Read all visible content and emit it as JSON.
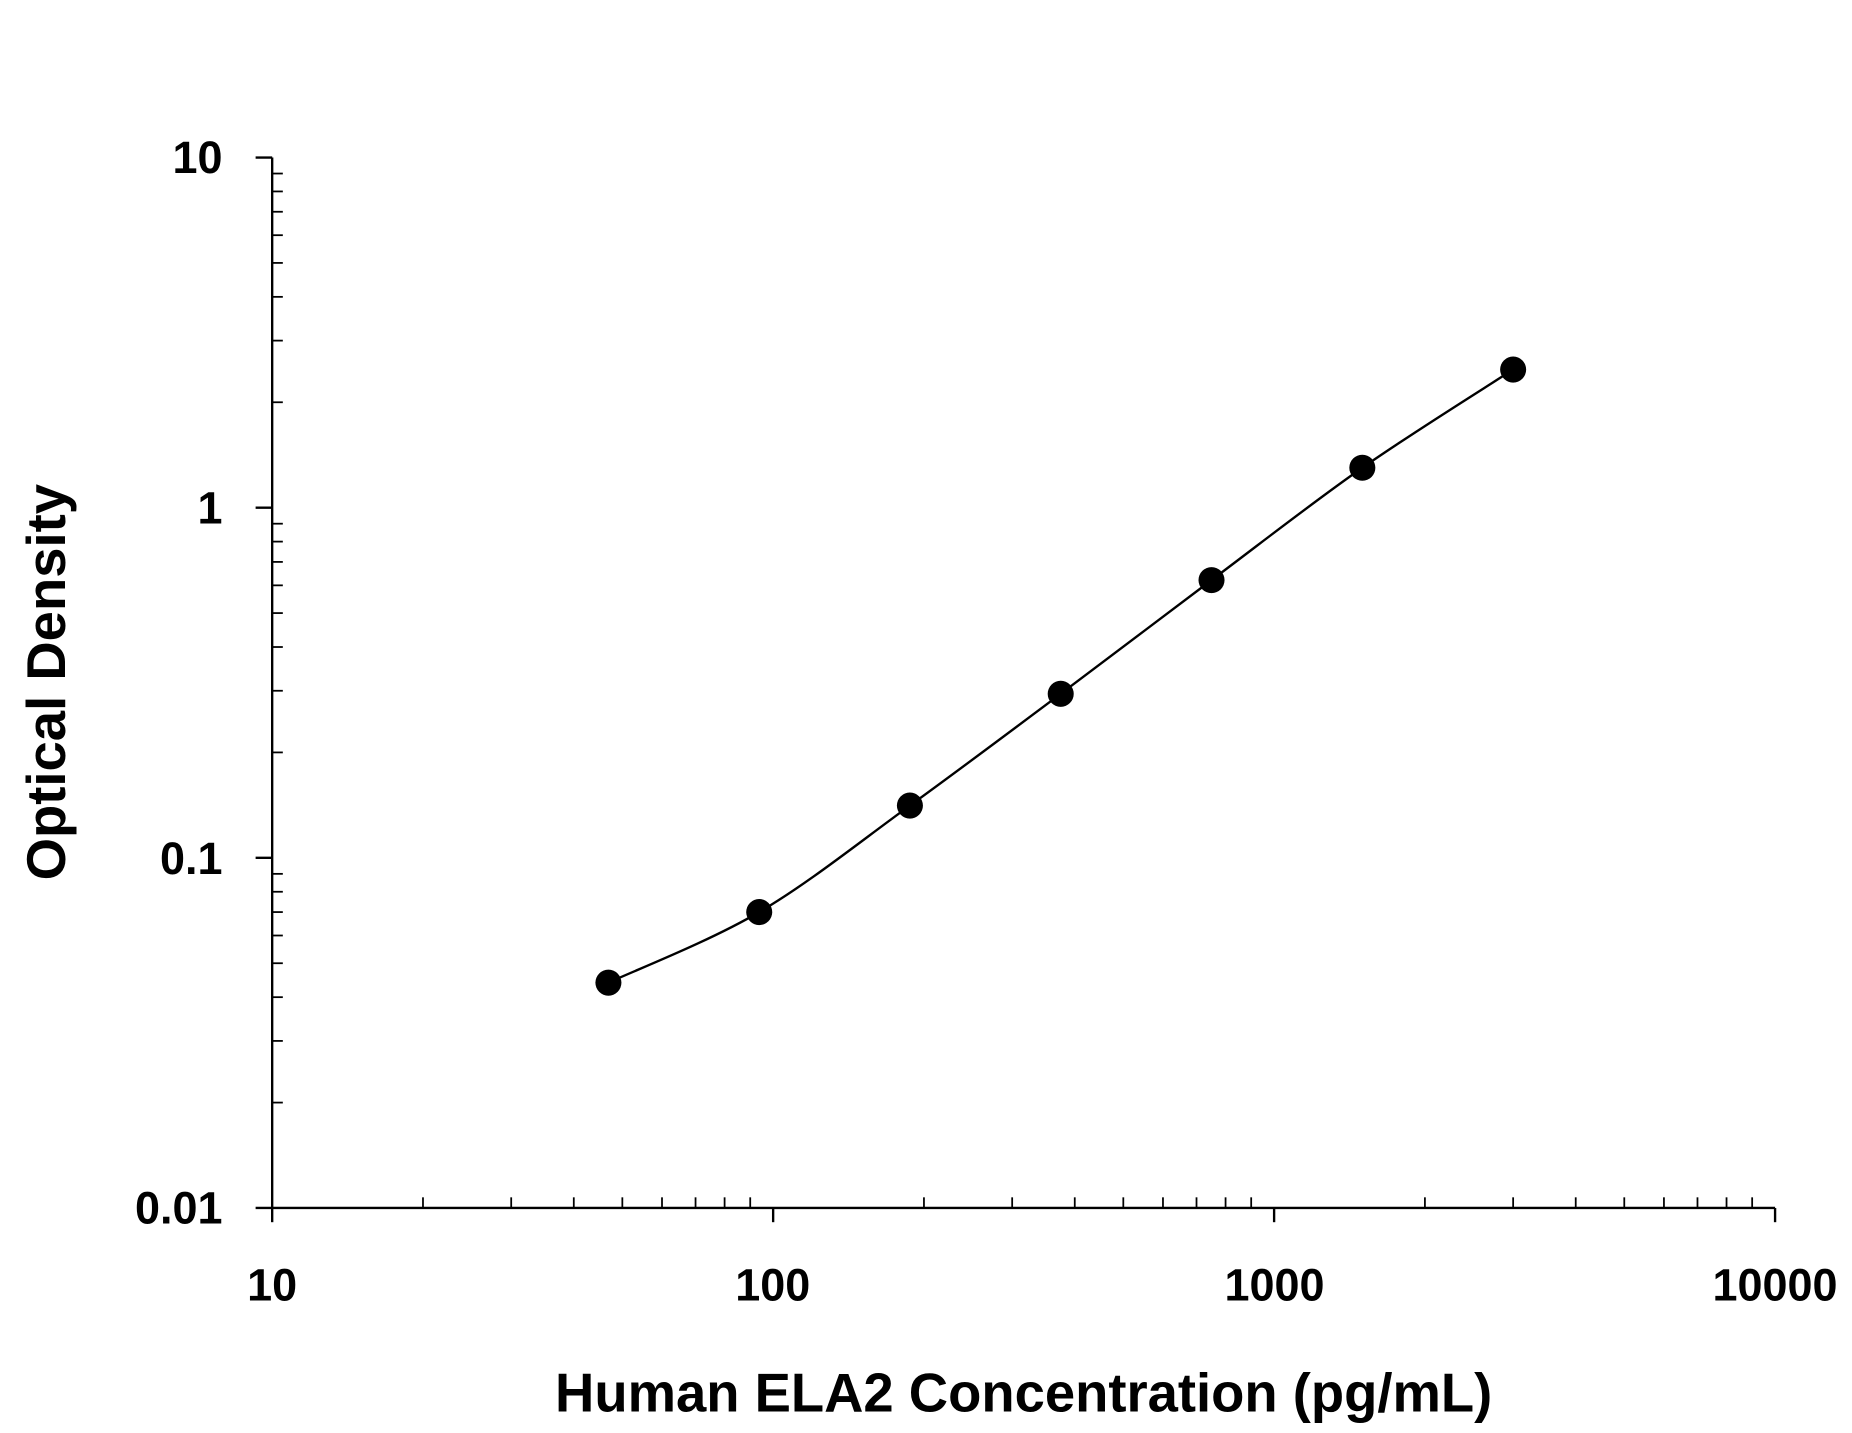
{
  "chart_data": {
    "type": "scatter",
    "title": "",
    "xlabel": "Human ELA2 Concentration (pg/mL)",
    "ylabel": "Optical Density",
    "xscale": "log",
    "yscale": "log",
    "xlim": [
      10,
      10000
    ],
    "ylim": [
      0.01,
      10
    ],
    "x_ticks": [
      "10",
      "100",
      "1000",
      "10000"
    ],
    "y_ticks": [
      "0.01",
      "0.1",
      "1",
      "10"
    ],
    "grid": false,
    "fit_curve": true,
    "marker_color": "#000000",
    "series": [
      {
        "x": [
          46.9,
          93.8,
          187.5,
          375,
          750,
          1500,
          3000
        ],
        "y": [
          0.044,
          0.07,
          0.141,
          0.294,
          0.621,
          1.3,
          2.48
        ]
      }
    ]
  }
}
